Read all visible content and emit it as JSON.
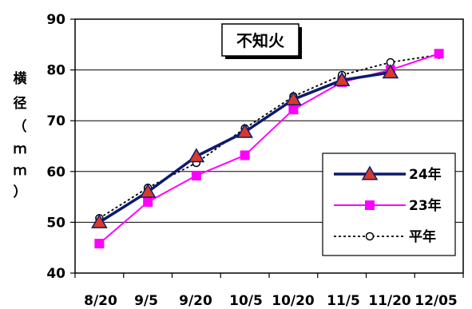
{
  "chart_data": {
    "type": "line",
    "title": "不知火",
    "ylabel_chars": [
      "横",
      "径",
      "（",
      "ｍ",
      "ｍ",
      "）"
    ],
    "categories": [
      "8/20",
      "9/5",
      "9/20",
      "10/5",
      "10/20",
      "11/5",
      "11/20",
      "12/05"
    ],
    "ylim": [
      40,
      90
    ],
    "yticks": [
      40,
      50,
      60,
      70,
      80,
      90
    ],
    "grid": true,
    "legend_position": "bottom-right",
    "series": [
      {
        "name": "24年",
        "values": [
          50.0,
          56.0,
          63.0,
          67.8,
          74.2,
          78.0,
          79.5,
          null
        ],
        "color": "#0d1a6e",
        "marker": "triangle",
        "marker_fill": "#d93a2a",
        "style": "solid"
      },
      {
        "name": "23年",
        "values": [
          45.8,
          54.0,
          59.2,
          63.2,
          72.2,
          77.6,
          80.0,
          83.2
        ],
        "color": "#ff00ff",
        "marker": "square",
        "marker_fill": "#ff00ff",
        "style": "solid"
      },
      {
        "name": "平年",
        "values": [
          50.8,
          56.8,
          61.7,
          68.5,
          74.8,
          79.0,
          81.5,
          83.0
        ],
        "color": "#000000",
        "marker": "circle",
        "marker_fill": "#ffffff",
        "style": "dotted"
      }
    ]
  }
}
